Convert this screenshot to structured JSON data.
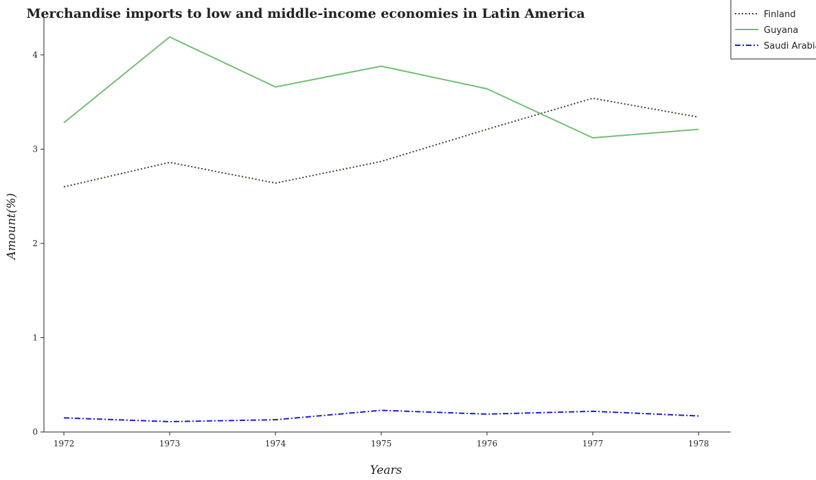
{
  "chart_data": {
    "type": "line",
    "title": "Merchandise imports to low and middle-income economies in Latin America",
    "xlabel": "Years",
    "ylabel": "Amount(%)",
    "categories": [
      "1972",
      "1973",
      "1974",
      "1975",
      "1976",
      "1977",
      "1978"
    ],
    "ylim": [
      0,
      4.4
    ],
    "yticks": [
      "0",
      "1",
      "2",
      "3",
      "4"
    ],
    "grid": false,
    "legend_position": "top-right",
    "series": [
      {
        "name": "Finland",
        "color": "#3d3d2a",
        "style": "dotted",
        "values": [
          2.6,
          2.86,
          2.64,
          2.87,
          3.21,
          3.54,
          3.34
        ]
      },
      {
        "name": "Guyana",
        "color": "#6fbf6f",
        "style": "solid",
        "values": [
          3.28,
          4.19,
          3.66,
          3.88,
          3.64,
          3.12,
          3.21
        ]
      },
      {
        "name": "Saudi Arabia",
        "color": "#1a1ad0",
        "style": "dashdot",
        "values": [
          0.15,
          0.11,
          0.13,
          0.23,
          0.19,
          0.22,
          0.17
        ]
      }
    ]
  }
}
